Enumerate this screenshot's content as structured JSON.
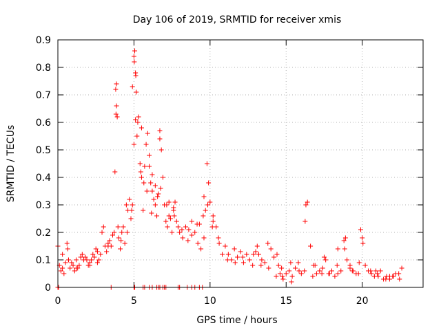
{
  "chart_data": {
    "type": "scatter",
    "title": "Day 106 of 2019, SRMTID for receiver xmis",
    "xlabel": "GPS time / hours",
    "ylabel": "SRMTID / TECUs",
    "xlim": [
      0,
      24
    ],
    "ylim": [
      0,
      0.9
    ],
    "xticks": [
      0,
      5,
      10,
      15,
      20
    ],
    "yticks": [
      0,
      0.1,
      0.2,
      0.3,
      0.4,
      0.5,
      0.6,
      0.7,
      0.8,
      0.9
    ],
    "xtick_labels": [
      "0",
      "5",
      "10",
      "15",
      "20"
    ],
    "ytick_labels": [
      "0",
      "0.1",
      "0.2",
      "0.3",
      "0.4",
      "0.5",
      "0.6",
      "0.7",
      "0.8",
      "0.9"
    ],
    "grid": true,
    "marker": "+",
    "color": "#ff0000",
    "series": [
      {
        "name": "SRMTID",
        "x": [
          0.0,
          0.1,
          0.2,
          0.3,
          0.4,
          0.5,
          0.6,
          0.65,
          0.7,
          0.8,
          0.9,
          1.0,
          1.1,
          1.2,
          1.3,
          1.4,
          1.5,
          1.6,
          1.7,
          1.8,
          1.9,
          2.0,
          2.1,
          2.2,
          2.3,
          2.4,
          2.5,
          2.6,
          2.7,
          2.8,
          2.9,
          3.0,
          3.1,
          3.2,
          3.3,
          3.4,
          3.5,
          3.6,
          3.7,
          3.8,
          3.85,
          3.9,
          4.0,
          4.1,
          4.2,
          4.3,
          4.4,
          4.5,
          4.6,
          4.7,
          4.8,
          4.9,
          5.0,
          5.05,
          5.1,
          5.15,
          5.2,
          5.3,
          5.4,
          5.5,
          5.6,
          5.7,
          5.8,
          5.9,
          6.0,
          6.1,
          6.2,
          6.3,
          6.4,
          6.5,
          6.6,
          6.7,
          6.8,
          6.9,
          7.0,
          7.1,
          7.2,
          7.3,
          7.4,
          7.5,
          7.6,
          7.7,
          7.8,
          7.9,
          8.0,
          8.2,
          8.4,
          8.6,
          8.8,
          9.0,
          9.2,
          9.4,
          9.6,
          9.7,
          9.8,
          9.9,
          10.0,
          10.2,
          10.4,
          10.6,
          10.8,
          11.0,
          11.2,
          11.4,
          11.6,
          11.8,
          12.0,
          12.2,
          12.4,
          12.6,
          12.8,
          13.0,
          13.2,
          13.4,
          13.6,
          13.8,
          14.0,
          14.2,
          14.4,
          14.5,
          14.6,
          14.8,
          15.0,
          15.2,
          15.4,
          15.6,
          15.8,
          16.0,
          16.2,
          16.3,
          16.4,
          16.6,
          16.8,
          17.0,
          17.2,
          17.4,
          17.6,
          17.8,
          18.0,
          18.2,
          18.4,
          18.6,
          18.8,
          18.9,
          19.0,
          19.2,
          19.4,
          19.6,
          19.8,
          19.9,
          20.0,
          20.2,
          20.4,
          20.6,
          20.8,
          21.0,
          21.2,
          21.4,
          21.6,
          21.8,
          22.0,
          22.2,
          22.4,
          22.6,
          0.3,
          0.7,
          1.2,
          2.1,
          2.6,
          3.3,
          3.75,
          3.82,
          3.95,
          4.15,
          4.55,
          4.85,
          5.02,
          5.12,
          5.25,
          5.45,
          5.65,
          5.85,
          6.15,
          6.55,
          6.75,
          7.15,
          7.65,
          8.15,
          8.55,
          9.15,
          9.55,
          9.85,
          10.15,
          10.55,
          11.15,
          11.65,
          12.15,
          12.85,
          13.35,
          13.85,
          14.35,
          14.75,
          15.35,
          15.85,
          16.25,
          16.75,
          17.35,
          17.85,
          18.35,
          18.85,
          19.35,
          19.75,
          20.05,
          20.55,
          21.05,
          21.55,
          22.05,
          22.45,
          3.85,
          4.9,
          5.0,
          5.1,
          5.5,
          6.0,
          6.2,
          6.4,
          6.7,
          7.3,
          7.6,
          8.8,
          9.3,
          9.6,
          10.2,
          13.1,
          14.7,
          15.3,
          16.9,
          17.5,
          18.4,
          19.2,
          20.9,
          21.8
        ],
        "y": [
          0.15,
          0.08,
          0.06,
          0.07,
          0.05,
          0.09,
          0.16,
          0.14,
          0.1,
          0.07,
          0.09,
          0.08,
          0.06,
          0.1,
          0.07,
          0.08,
          0.11,
          0.12,
          0.1,
          0.11,
          0.1,
          0.08,
          0.09,
          0.1,
          0.12,
          0.11,
          0.14,
          0.13,
          0.1,
          0.12,
          0.2,
          0.22,
          0.15,
          0.13,
          0.16,
          0.17,
          0.15,
          0.19,
          0.2,
          0.72,
          0.74,
          0.62,
          0.18,
          0.14,
          0.2,
          0.22,
          0.16,
          0.3,
          0.28,
          0.32,
          0.25,
          0.3,
          0.84,
          0.86,
          0.78,
          0.71,
          0.55,
          0.62,
          0.45,
          0.4,
          0.28,
          0.44,
          0.52,
          0.56,
          0.48,
          0.38,
          0.35,
          0.32,
          0.3,
          0.26,
          0.34,
          0.57,
          0.5,
          0.4,
          0.3,
          0.24,
          0.22,
          0.26,
          0.25,
          0.2,
          0.28,
          0.31,
          0.24,
          0.22,
          0.2,
          0.18,
          0.22,
          0.21,
          0.19,
          0.2,
          0.16,
          0.14,
          0.18,
          0.28,
          0.45,
          0.38,
          0.31,
          0.26,
          0.22,
          0.16,
          0.12,
          0.15,
          0.12,
          0.1,
          0.14,
          0.11,
          0.13,
          0.09,
          0.12,
          0.1,
          0.08,
          0.13,
          0.12,
          0.1,
          0.09,
          0.16,
          0.14,
          0.11,
          0.12,
          0.08,
          0.05,
          0.03,
          0.05,
          0.06,
          0.04,
          0.07,
          0.09,
          0.05,
          0.06,
          0.3,
          0.31,
          0.15,
          0.08,
          0.05,
          0.06,
          0.07,
          0.1,
          0.05,
          0.06,
          0.04,
          0.05,
          0.06,
          0.17,
          0.18,
          0.1,
          0.08,
          0.06,
          0.05,
          0.09,
          0.21,
          0.18,
          0.08,
          0.06,
          0.05,
          0.04,
          0.05,
          0.06,
          0.03,
          0.04,
          0.03,
          0.04,
          0.05,
          0.05,
          0.07,
          0.12,
          0.1,
          0.07,
          0.08,
          0.09,
          0.15,
          0.42,
          0.63,
          0.22,
          0.17,
          0.2,
          0.28,
          0.82,
          0.77,
          0.6,
          0.42,
          0.38,
          0.35,
          0.27,
          0.33,
          0.36,
          0.3,
          0.26,
          0.21,
          0.17,
          0.23,
          0.26,
          0.3,
          0.22,
          0.18,
          0.1,
          0.09,
          0.11,
          0.12,
          0.08,
          0.07,
          0.04,
          0.04,
          0.02,
          0.06,
          0.24,
          0.04,
          0.05,
          0.05,
          0.08,
          0.14,
          0.06,
          0.05,
          0.16,
          0.06,
          0.04,
          0.03,
          0.04,
          0.03,
          0.66,
          0.73,
          0.52,
          0.61,
          0.58,
          0.44,
          0.41,
          0.37,
          0.54,
          0.31,
          0.29,
          0.24,
          0.23,
          0.33,
          0.24,
          0.15,
          0.07,
          0.09,
          0.08,
          0.11,
          0.14,
          0.07,
          0.06,
          0.04
        ]
      },
      {
        "name": "SRMTID (zero)",
        "x": [
          0.0,
          0.05,
          3.5,
          5.0,
          5.05,
          5.6,
          5.7,
          6.0,
          6.2,
          6.5,
          6.6,
          6.7,
          6.9,
          7.0,
          7.1,
          7.9,
          8.0,
          8.5,
          8.8,
          9.0,
          9.3,
          9.5
        ],
        "y": [
          0,
          0,
          0,
          0,
          0,
          0,
          0,
          0,
          0,
          0,
          0,
          0,
          0,
          0,
          0,
          0,
          0,
          0,
          0,
          0,
          0,
          0
        ]
      }
    ]
  }
}
